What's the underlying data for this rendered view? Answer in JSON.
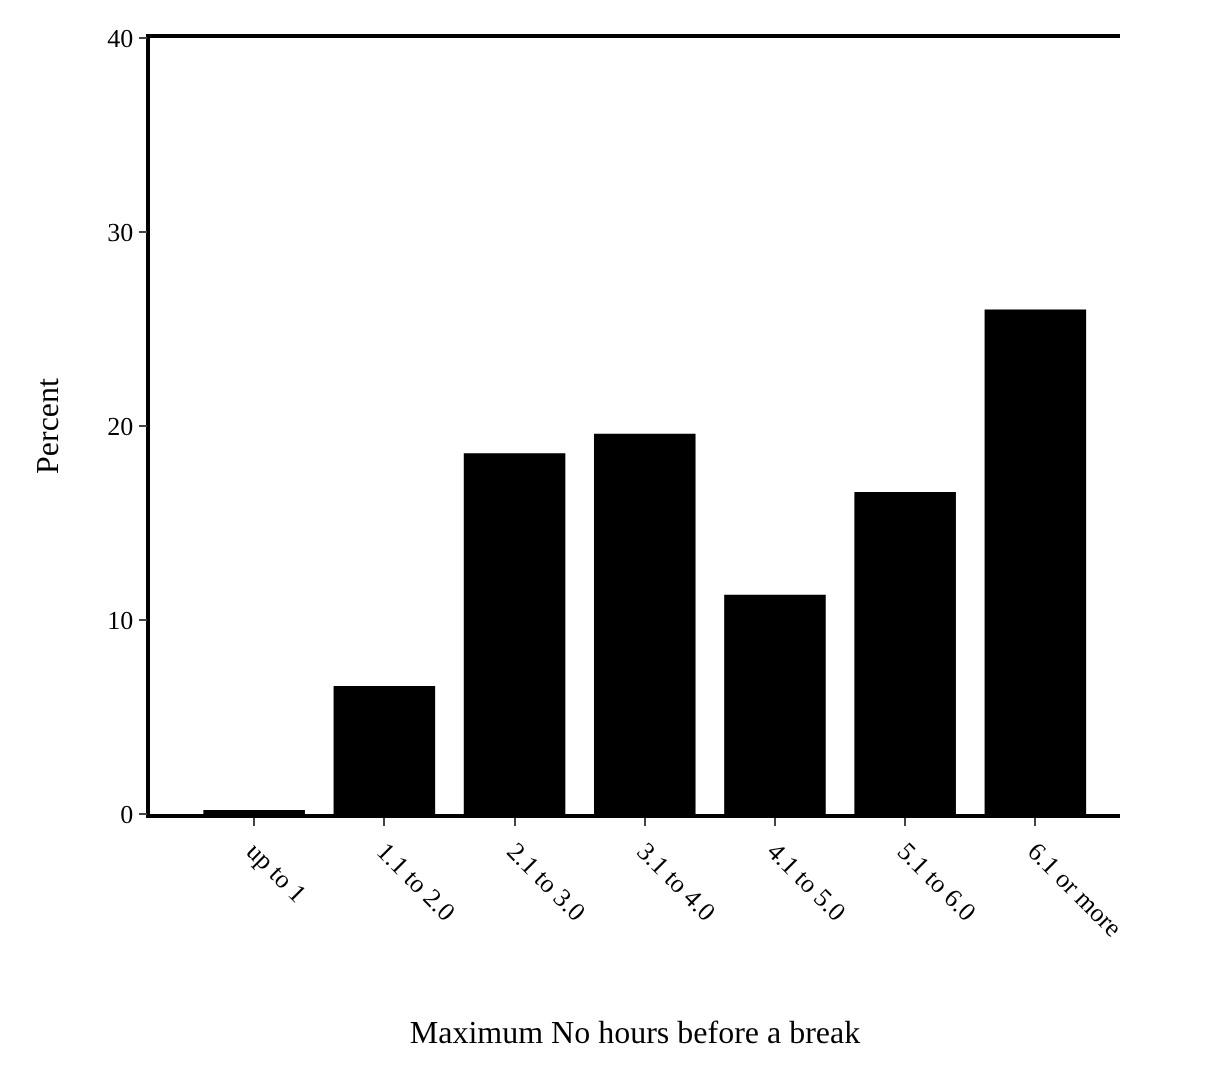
{
  "chart_data": {
    "type": "bar",
    "xlabel": "Maximum No hours before a break",
    "ylabel": "Percent",
    "categories": [
      "up to 1",
      "1.1 to 2.0",
      "2.1 to 3.0",
      "3.1 to 4.0",
      "4.1 to 5.0",
      "5.1 to 6.0",
      "6.1 or more"
    ],
    "values": [
      0.2,
      6.6,
      18.6,
      19.6,
      11.3,
      16.6,
      26.0
    ],
    "color": "#000000",
    "ylim": [
      0,
      40
    ],
    "yticks": [
      0,
      10,
      20,
      30,
      40
    ]
  }
}
